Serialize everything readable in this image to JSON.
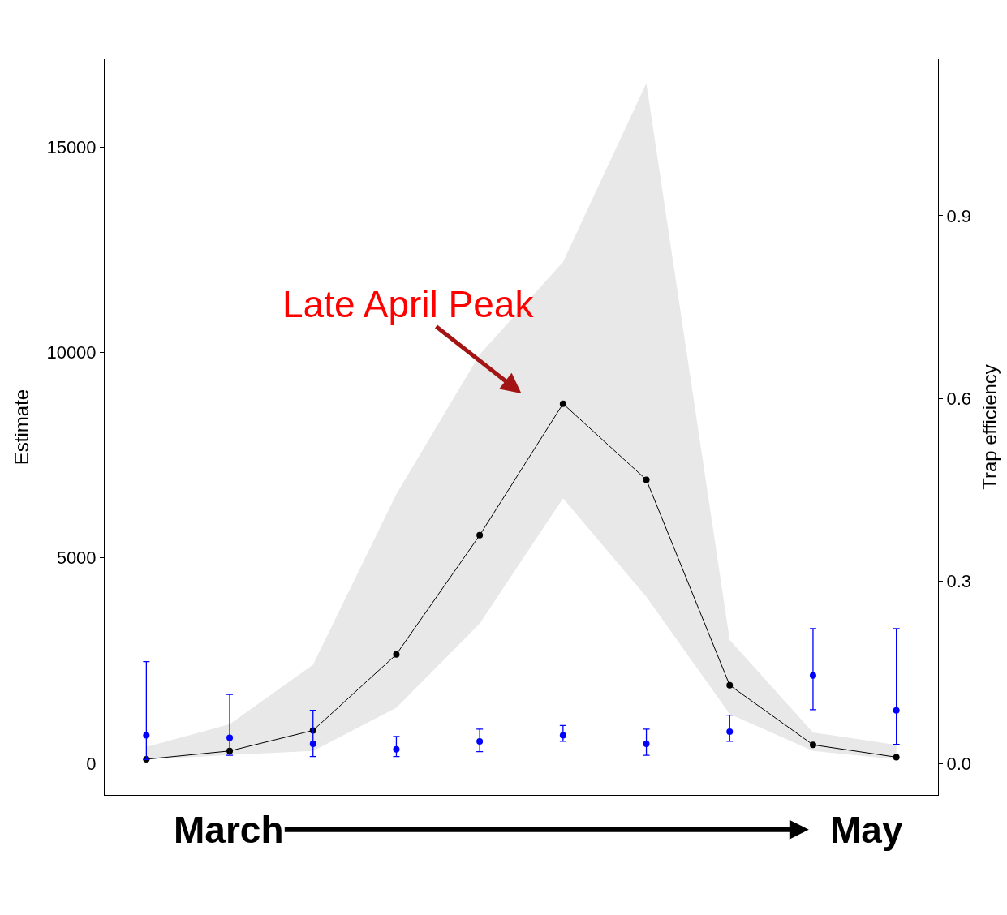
{
  "chart_data": {
    "type": "line",
    "ylabel": "Estimate",
    "y2label": "Trap efficiency",
    "categories": [
      null,
      null,
      null,
      null,
      null,
      null,
      null,
      null,
      null,
      null
    ],
    "series": [
      {
        "color": "#000000",
        "values": [
          100,
          300,
          800,
          2650,
          5550,
          8750,
          6900,
          1900,
          450,
          150
        ],
        "lower": [
          100,
          200,
          300,
          1350,
          3400,
          6450,
          4050,
          1200,
          300,
          100
        ],
        "upper": [
          400,
          950,
          2400,
          6550,
          9950,
          12200,
          16550,
          3000,
          750,
          450
        ]
      },
      {
        "type": "scatter",
        "axis": "y2",
        "color": "#0000ff",
        "values": [
          0.047,
          0.043,
          0.033,
          0.024,
          0.037,
          0.047,
          0.033,
          0.053,
          0.145,
          0.088
        ],
        "errors": [
          [
            0.007,
            0.168
          ],
          [
            0.014,
            0.114
          ],
          [
            0.012,
            0.088
          ],
          [
            0.012,
            0.045
          ],
          [
            0.02,
            0.057
          ],
          [
            0.037,
            0.063
          ],
          [
            0.014,
            0.057
          ],
          [
            0.037,
            0.08
          ],
          [
            0.089,
            0.222
          ],
          [
            0.032,
            0.222
          ]
        ]
      }
    ],
    "ylim": [
      -770,
      17134
    ],
    "yticks": [
      0,
      5000,
      10000,
      15000
    ],
    "y2lim": [
      -0.051,
      1.157
    ],
    "y2ticks": [
      {
        "value": 0,
        "label": "0.0"
      },
      0.3,
      0.6,
      0.9
    ],
    "annotations": [
      "Late April Peak",
      "March",
      "May"
    ],
    "marker": "circle",
    "line_style": "solid",
    "tick_labels": "y"
  }
}
